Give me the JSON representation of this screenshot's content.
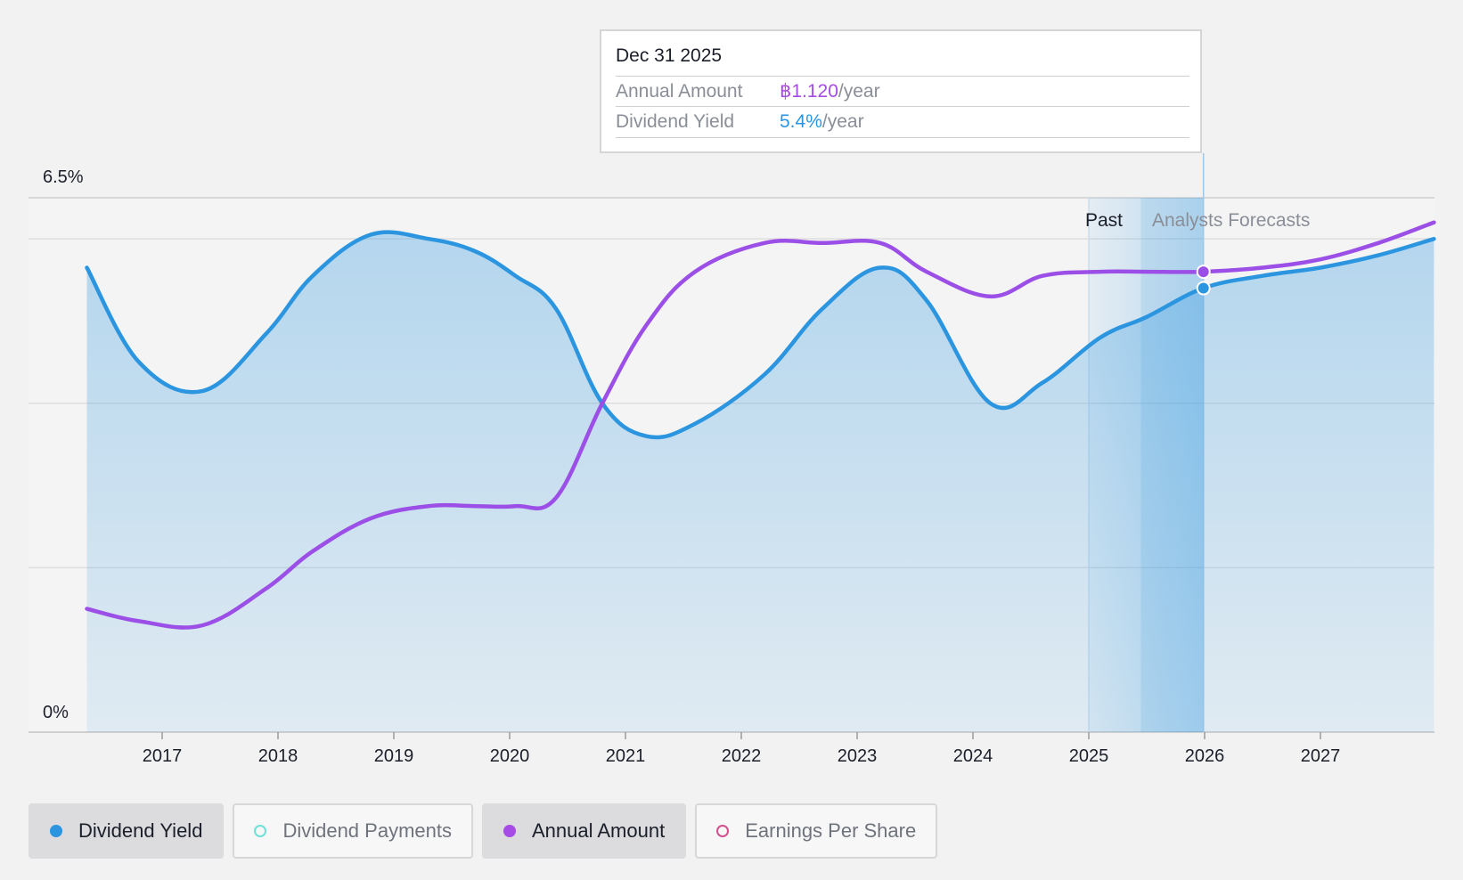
{
  "chart_data": {
    "type": "line",
    "x_ticks": [
      "2017",
      "2018",
      "2019",
      "2020",
      "2021",
      "2022",
      "2023",
      "2024",
      "2025",
      "2026",
      "2027"
    ],
    "y_top_label": "6.5%",
    "y_bottom_label": "0%",
    "ylim": [
      0,
      6.5
    ],
    "xlim": [
      2016.0,
      2027.98
    ],
    "grid": true,
    "past_label": "Past",
    "forecast_label": "Analysts Forecasts",
    "forecast_start": 2025.45,
    "hover_x": 2025.99,
    "series": [
      {
        "name": "Dividend Yield",
        "color": "#2b95e0",
        "filled": true,
        "x": [
          2016.35,
          2016.8,
          2017.35,
          2017.9,
          2018.3,
          2018.8,
          2019.3,
          2019.7,
          2020.05,
          2020.4,
          2020.8,
          2021.18,
          2021.6,
          2022.2,
          2022.7,
          2023.2,
          2023.6,
          2024.15,
          2024.6,
          2025.1,
          2025.5,
          2025.99,
          2026.5,
          2027.0,
          2027.5,
          2027.98
        ],
        "values": [
          5.65,
          4.5,
          4.15,
          4.85,
          5.55,
          6.05,
          6.0,
          5.85,
          5.55,
          5.15,
          4.0,
          3.6,
          3.75,
          4.35,
          5.15,
          5.65,
          5.25,
          4.0,
          4.25,
          4.8,
          5.05,
          5.4,
          5.55,
          5.65,
          5.8,
          6.0
        ]
      },
      {
        "name": "Annual Amount",
        "color": "#9b4fe6",
        "filled": false,
        "x": [
          2016.35,
          2016.8,
          2017.35,
          2017.9,
          2018.3,
          2018.8,
          2019.3,
          2019.7,
          2020.05,
          2020.4,
          2020.8,
          2021.18,
          2021.6,
          2022.2,
          2022.7,
          2023.2,
          2023.6,
          2024.15,
          2024.6,
          2025.1,
          2025.5,
          2025.99,
          2026.5,
          2027.0,
          2027.5,
          2027.98
        ],
        "values": [
          1.5,
          1.35,
          1.3,
          1.75,
          2.2,
          2.6,
          2.75,
          2.75,
          2.75,
          2.85,
          4.0,
          4.95,
          5.6,
          5.95,
          5.95,
          5.95,
          5.6,
          5.3,
          5.55,
          5.6,
          5.6,
          5.6,
          5.65,
          5.75,
          5.95,
          6.2
        ]
      }
    ],
    "tooltip": {
      "date": "Dec 31 2025",
      "rows": [
        {
          "label": "Annual Amount",
          "value": "฿1.120",
          "unit": "/year",
          "color": "#a64be6"
        },
        {
          "label": "Dividend Yield",
          "value": "5.4%",
          "unit": "/year",
          "color": "#2b95e0"
        }
      ]
    },
    "legend": [
      {
        "label": "Dividend Yield",
        "active": true,
        "color": "#2b95e0",
        "filled": true
      },
      {
        "label": "Dividend Payments",
        "active": false,
        "color": "#6fe1d6",
        "filled": false
      },
      {
        "label": "Annual Amount",
        "active": true,
        "color": "#a64be6",
        "filled": true
      },
      {
        "label": "Earnings Per Share",
        "active": false,
        "color": "#d2508c",
        "filled": false
      }
    ]
  }
}
